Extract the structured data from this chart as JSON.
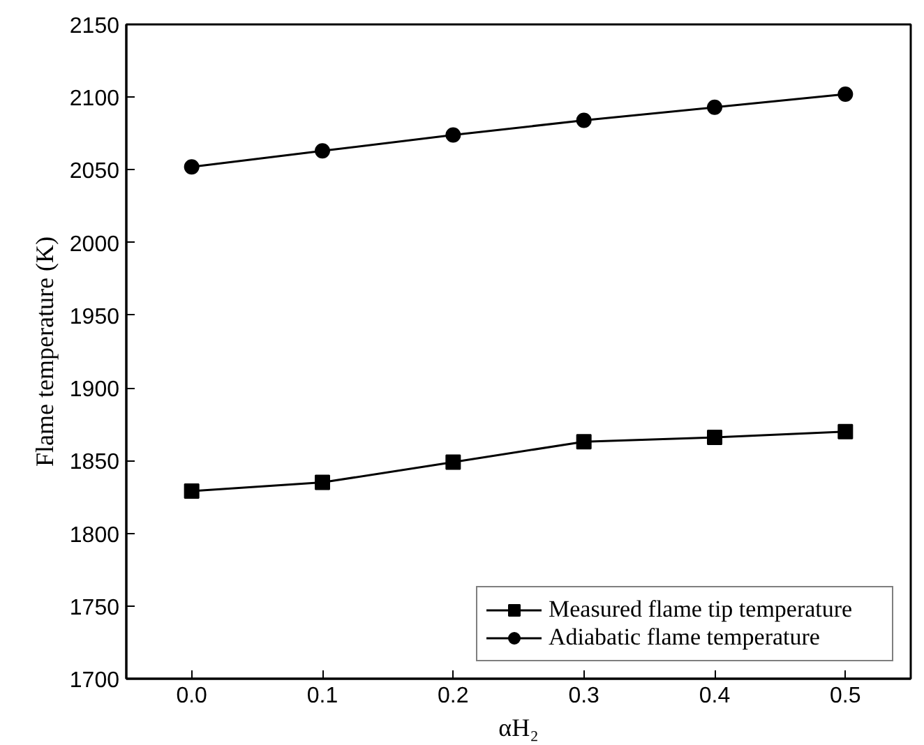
{
  "chart_data": {
    "type": "line",
    "xlabel": "αH₂",
    "ylabel": "Flame temperature (K)",
    "x": [
      0.0,
      0.1,
      0.2,
      0.3,
      0.4,
      0.5
    ],
    "series": [
      {
        "name": "Measured flame tip temperature",
        "color": "#000000",
        "marker": "square",
        "values": [
          1829,
          1835,
          1849,
          1863,
          1866,
          1870
        ]
      },
      {
        "name": "Adiabatic flame temperature",
        "color": "#000000",
        "marker": "circle",
        "values": [
          2052,
          2063,
          2074,
          2084,
          2093,
          2102
        ]
      }
    ],
    "xlim": [
      -0.05,
      0.55
    ],
    "xticks": [
      {
        "value": 0.0,
        "label": "0.0"
      },
      0.1,
      0.2,
      0.3,
      0.4,
      0.5
    ],
    "ylim": [
      1700,
      2150
    ],
    "yticks": [
      1700,
      1750,
      1800,
      1850,
      1900,
      1950,
      2000,
      2050,
      2100,
      2150
    ],
    "grid": false,
    "legend": "bottom right",
    "line_style": "solid"
  }
}
